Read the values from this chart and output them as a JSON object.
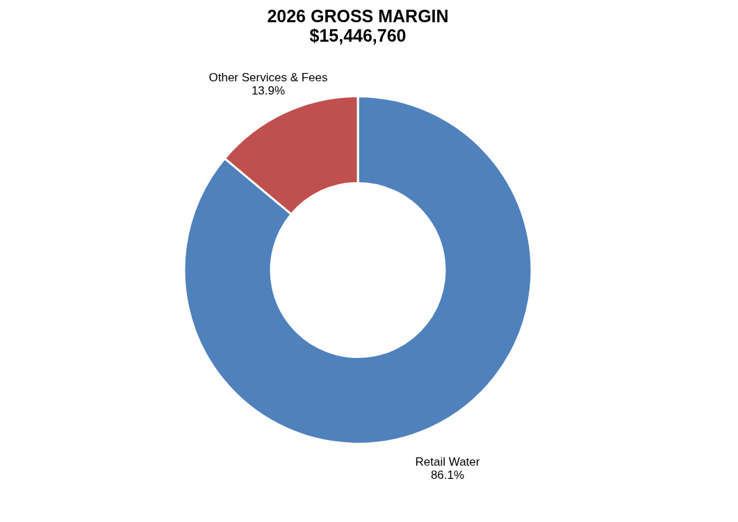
{
  "chart_data": {
    "type": "donut",
    "title": "2026 GROSS MARGIN",
    "subtitle": "$15,446,760",
    "categories": [
      "Retail Water",
      "Other Services & Fees"
    ],
    "values": [
      86.1,
      13.9
    ],
    "colors": [
      "#4f81bd",
      "#c0504d"
    ],
    "value_labels": [
      "86.1%",
      "13.9%"
    ],
    "legend": false
  }
}
